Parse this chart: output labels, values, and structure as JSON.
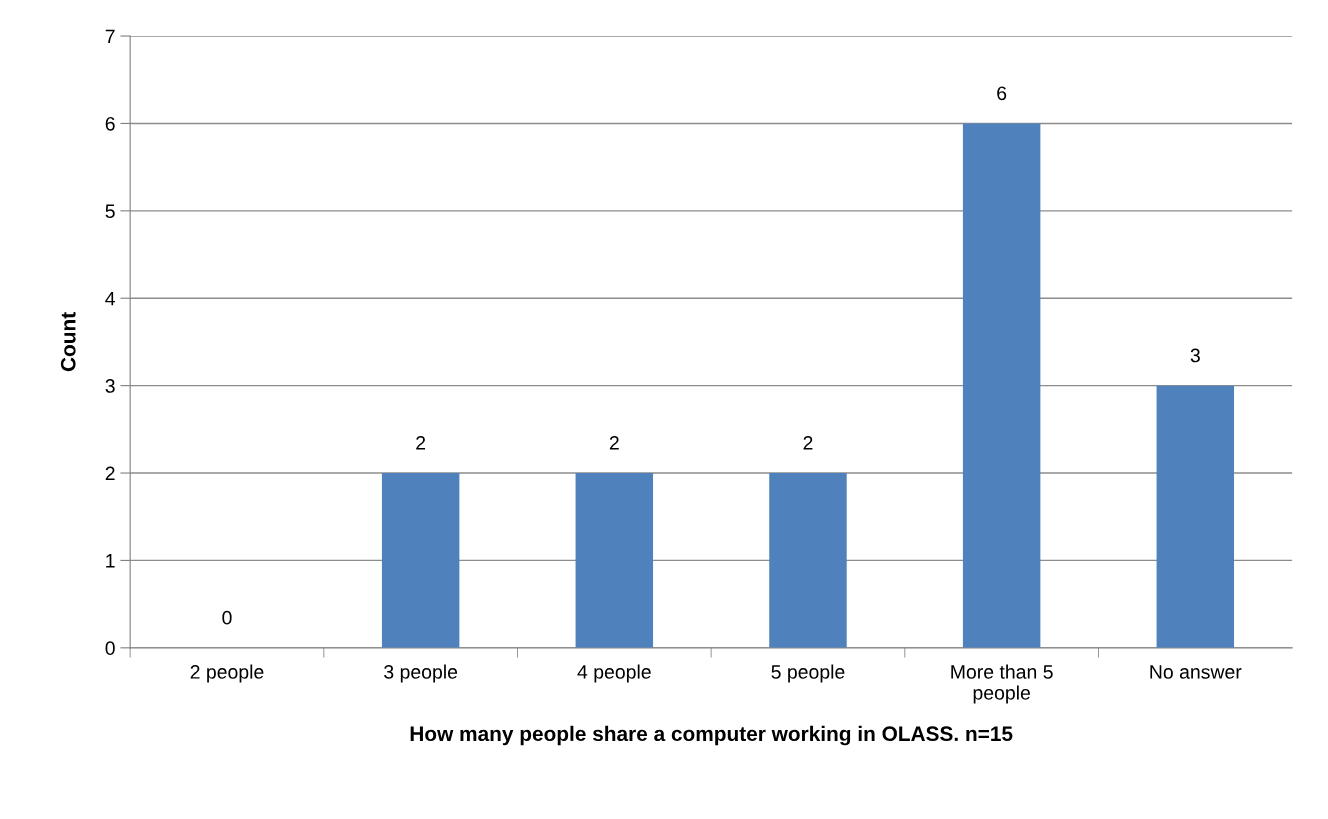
{
  "chart_data": {
    "type": "bar",
    "xlabel": "How many people share a computer working in OLASS. n=15",
    "ylabel": "Count",
    "categories": [
      "2 people",
      "3 people",
      "4 people",
      "5 people",
      "More than 5\npeople",
      "No answer"
    ],
    "values": [
      0,
      2,
      2,
      2,
      6,
      3
    ],
    "color": "#4f81bd",
    "ylim": [
      0,
      7
    ],
    "yticks": [
      0,
      1,
      2,
      3,
      4,
      5,
      6,
      7
    ],
    "grid": "y",
    "data_labels": true,
    "legend": false
  }
}
